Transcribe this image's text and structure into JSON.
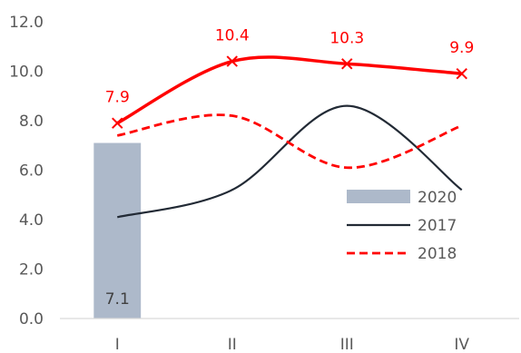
{
  "chart_data": {
    "type": "line",
    "categories": [
      "I",
      "II",
      "III",
      "IV"
    ],
    "ylim": [
      0,
      12
    ],
    "yticks": [
      "0.0",
      "2.0",
      "4.0",
      "6.0",
      "8.0",
      "10.0",
      "12.0"
    ],
    "grid": false,
    "legend_position": "right",
    "series": [
      {
        "name": "2020",
        "kind": "bar",
        "color": "#adb9ca",
        "values": [
          7.1,
          null,
          null,
          null
        ],
        "labels": [
          "7.1"
        ]
      },
      {
        "name": "2017",
        "kind": "line",
        "style": "solid",
        "color": "#222a35",
        "values": [
          4.1,
          5.2,
          8.6,
          5.2
        ]
      },
      {
        "name": "2018",
        "kind": "line",
        "style": "dashed",
        "color": "#ff0000",
        "values": [
          7.4,
          8.2,
          6.1,
          7.8
        ]
      },
      {
        "name": "",
        "kind": "line",
        "style": "solid-markers",
        "marker": "x",
        "color": "#ff0000",
        "values": [
          7.9,
          10.4,
          10.3,
          9.9
        ],
        "labels": [
          "7.9",
          "10.4",
          "10.3",
          "9.9"
        ]
      }
    ]
  }
}
